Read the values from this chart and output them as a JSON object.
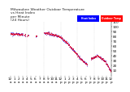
{
  "title": "Milwaukee Weather Outdoor Temperature\nvs Heat Index\nper Minute\n(24 Hours)",
  "bg_color": "#ffffff",
  "temp_color": "#ff0000",
  "heat_color": "#0000ff",
  "ylim": [
    0,
    110
  ],
  "xlim": [
    0,
    1440
  ],
  "tick_label_size": 3.0,
  "title_fontsize": 3.2,
  "grid_color": "#bbbbbb",
  "legend_temp_label": "Outdoor Temp",
  "legend_heat_label": "Heat Index",
  "yticks": [
    10,
    20,
    30,
    40,
    50,
    60,
    70,
    80,
    90,
    100,
    110
  ],
  "vgrid_positions": [
    240,
    480,
    720,
    960,
    1200
  ],
  "temp_segments": [
    {
      "x_start": 0,
      "x_end": 180,
      "y_start": 85,
      "y_end": 84
    },
    {
      "x_start": 200,
      "x_end": 220,
      "y_start": 83,
      "y_end": 83
    },
    {
      "x_start": 240,
      "x_end": 260,
      "y_start": 82,
      "y_end": 82
    },
    {
      "x_start": 360,
      "x_end": 380,
      "y_start": 81,
      "y_end": 80
    },
    {
      "x_start": 480,
      "x_end": 560,
      "y_start": 87,
      "y_end": 86
    },
    {
      "x_start": 560,
      "x_end": 640,
      "y_start": 85,
      "y_end": 83
    },
    {
      "x_start": 640,
      "x_end": 720,
      "y_start": 83,
      "y_end": 78
    },
    {
      "x_start": 720,
      "x_end": 800,
      "y_start": 78,
      "y_end": 68
    },
    {
      "x_start": 800,
      "x_end": 900,
      "y_start": 68,
      "y_end": 52
    },
    {
      "x_start": 900,
      "x_end": 1000,
      "y_start": 52,
      "y_end": 35
    },
    {
      "x_start": 1000,
      "x_end": 1100,
      "y_start": 35,
      "y_end": 22
    },
    {
      "x_start": 1150,
      "x_end": 1250,
      "y_start": 35,
      "y_end": 40
    },
    {
      "x_start": 1250,
      "x_end": 1350,
      "y_start": 40,
      "y_end": 30
    },
    {
      "x_start": 1350,
      "x_end": 1440,
      "y_start": 30,
      "y_end": 8
    }
  ]
}
